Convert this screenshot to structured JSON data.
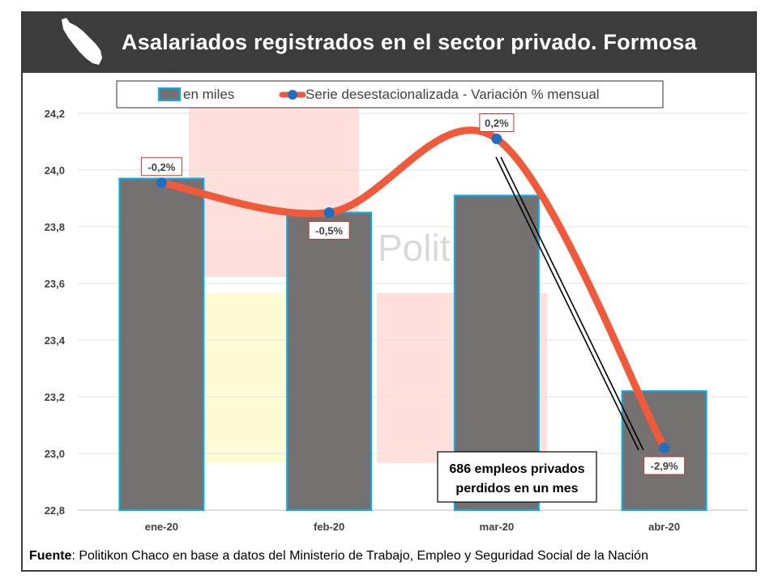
{
  "header": {
    "title": "Asalariados registrados en el sector privado. Formosa"
  },
  "watermark": {
    "text": "Polit"
  },
  "legend": {
    "bar_label": "en miles",
    "line_label": "Serie desestacionalizada - Variación % mensual"
  },
  "annotation": {
    "line1": "686 empleos privados",
    "line2": "perdidos en un mes"
  },
  "source": {
    "label": "Fuente",
    "text": ": Politikon Chaco en base a datos del Ministerio de Trabajo, Empleo y Seguridad Social de la Nación"
  },
  "colors": {
    "bar": "#767171",
    "bar_border": "#00b0f0",
    "line": "#f05a3a",
    "marker": "#1f6fc0",
    "header_bg": "#3c3c3c"
  },
  "chart_data": {
    "type": "bar",
    "categories": [
      "ene-20",
      "feb-20",
      "mar-20",
      "abr-20"
    ],
    "series": [
      {
        "name": "en miles",
        "type": "bar",
        "values": [
          23.97,
          23.85,
          23.91,
          23.22
        ]
      },
      {
        "name": "Serie desestacionalizada - Variación % mensual",
        "type": "line",
        "values": [
          23.955,
          23.85,
          24.11,
          23.02
        ],
        "labels": [
          "-0,2%",
          "-0,5%",
          "0,2%",
          "-2,9%"
        ]
      }
    ],
    "ylim": [
      22.8,
      24.2
    ],
    "yticks": [
      "22,8",
      "23,0",
      "23,2",
      "23,4",
      "23,6",
      "23,8",
      "24,0",
      "24,2"
    ],
    "grid": true,
    "legend_position": "top"
  }
}
